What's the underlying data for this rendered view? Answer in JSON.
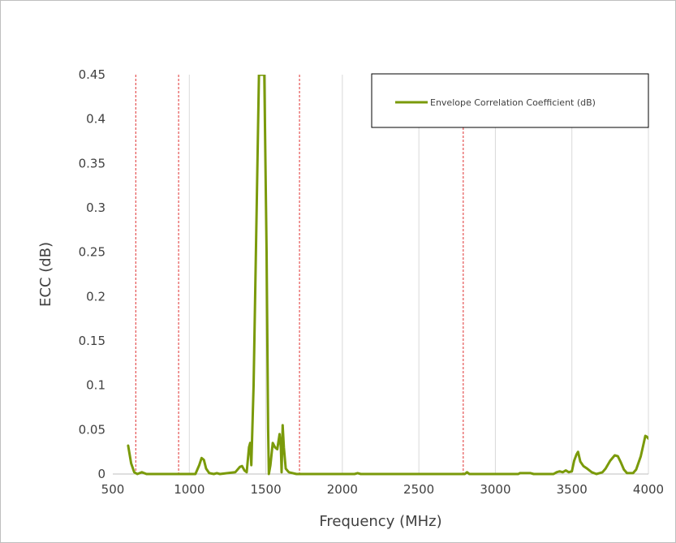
{
  "chart_data": {
    "type": "line",
    "title": "",
    "xlabel": "Frequency (MHz)",
    "ylabel": "ECC (dB)",
    "xlim": [
      500,
      4000
    ],
    "ylim": [
      0,
      0.45
    ],
    "x_ticks": [
      500,
      1000,
      1500,
      2000,
      2500,
      3000,
      3500,
      4000
    ],
    "y_ticks": [
      0,
      0.05,
      0.1,
      0.15,
      0.2,
      0.25,
      0.3,
      0.35,
      0.4,
      0.45
    ],
    "x_tick_labels": [
      "500",
      "1000",
      "1500",
      "2000",
      "2500",
      "3000",
      "3500",
      "4000"
    ],
    "y_tick_labels": [
      "0",
      "0.05",
      "0.1",
      "0.15",
      "0.2",
      "0.25",
      "0.3",
      "0.35",
      "0.4",
      "0.45"
    ],
    "grid": "vertical",
    "legend_position": "top-right",
    "reference_lines_x": [
      650,
      930,
      1720,
      2790
    ],
    "reference_line_color": "#e03030",
    "series": [
      {
        "name": "Envelope Correlation Coefficient (dB)",
        "color": "#7a9a0a",
        "points": [
          [
            600,
            0.032
          ],
          [
            620,
            0.012
          ],
          [
            640,
            0.002
          ],
          [
            660,
            0.0
          ],
          [
            690,
            0.002
          ],
          [
            720,
            0.0
          ],
          [
            780,
            0.0
          ],
          [
            1040,
            0.0
          ],
          [
            1065,
            0.01
          ],
          [
            1080,
            0.018
          ],
          [
            1095,
            0.016
          ],
          [
            1110,
            0.006
          ],
          [
            1130,
            0.001
          ],
          [
            1160,
            0.0
          ],
          [
            1180,
            0.001
          ],
          [
            1200,
            0.0
          ],
          [
            1300,
            0.002
          ],
          [
            1330,
            0.008
          ],
          [
            1345,
            0.009
          ],
          [
            1360,
            0.004
          ],
          [
            1375,
            0.002
          ],
          [
            1390,
            0.03
          ],
          [
            1398,
            0.035
          ],
          [
            1405,
            0.01
          ],
          [
            1420,
            0.1
          ],
          [
            1440,
            0.3
          ],
          [
            1455,
            0.45
          ],
          [
            1490,
            0.45
          ],
          [
            1505,
            0.25
          ],
          [
            1515,
            0.05
          ],
          [
            1520,
            0.0
          ],
          [
            1530,
            0.01
          ],
          [
            1545,
            0.035
          ],
          [
            1560,
            0.03
          ],
          [
            1575,
            0.028
          ],
          [
            1590,
            0.045
          ],
          [
            1598,
            0.03
          ],
          [
            1603,
            0.002
          ],
          [
            1610,
            0.055
          ],
          [
            1618,
            0.03
          ],
          [
            1630,
            0.006
          ],
          [
            1650,
            0.002
          ],
          [
            1700,
            0.0
          ],
          [
            2080,
            0.0
          ],
          [
            2100,
            0.001
          ],
          [
            2120,
            0.0
          ],
          [
            2800,
            0.0
          ],
          [
            2815,
            0.002
          ],
          [
            2830,
            0.0
          ],
          [
            3150,
            0.0
          ],
          [
            3160,
            0.001
          ],
          [
            3230,
            0.001
          ],
          [
            3250,
            0.0
          ],
          [
            3380,
            0.0
          ],
          [
            3400,
            0.002
          ],
          [
            3420,
            0.003
          ],
          [
            3440,
            0.002
          ],
          [
            3460,
            0.004
          ],
          [
            3480,
            0.002
          ],
          [
            3500,
            0.003
          ],
          [
            3515,
            0.015
          ],
          [
            3530,
            0.022
          ],
          [
            3540,
            0.025
          ],
          [
            3555,
            0.014
          ],
          [
            3575,
            0.009
          ],
          [
            3600,
            0.006
          ],
          [
            3630,
            0.002
          ],
          [
            3660,
            0.0
          ],
          [
            3680,
            0.001
          ],
          [
            3700,
            0.002
          ],
          [
            3720,
            0.006
          ],
          [
            3750,
            0.015
          ],
          [
            3780,
            0.021
          ],
          [
            3800,
            0.02
          ],
          [
            3820,
            0.013
          ],
          [
            3840,
            0.005
          ],
          [
            3860,
            0.001
          ],
          [
            3900,
            0.001
          ],
          [
            3920,
            0.005
          ],
          [
            3950,
            0.02
          ],
          [
            3970,
            0.035
          ],
          [
            3980,
            0.043
          ],
          [
            3990,
            0.042
          ],
          [
            4000,
            0.04
          ]
        ]
      }
    ]
  }
}
